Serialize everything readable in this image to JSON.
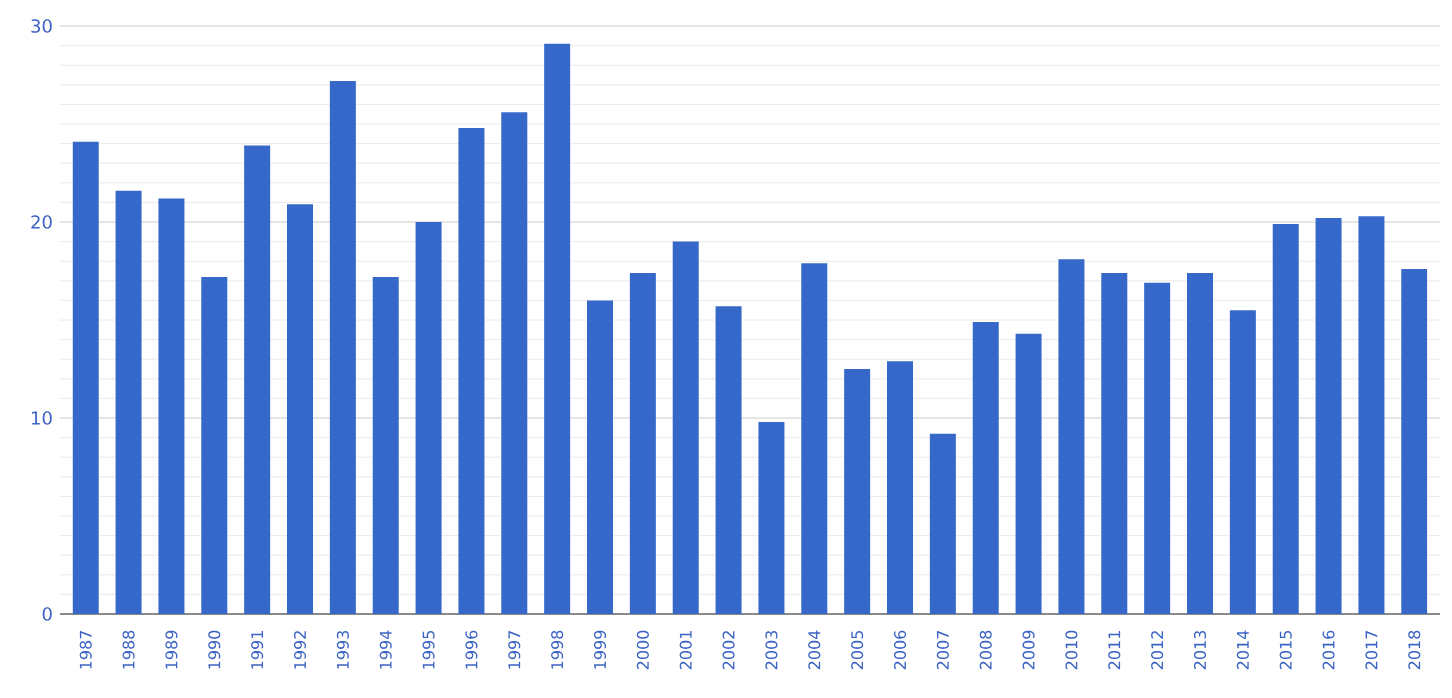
{
  "chart_data": {
    "type": "bar",
    "categories": [
      "1987",
      "1988",
      "1989",
      "1990",
      "1991",
      "1992",
      "1993",
      "1994",
      "1995",
      "1996",
      "1997",
      "1998",
      "1999",
      "2000",
      "2001",
      "2002",
      "2003",
      "2004",
      "2005",
      "2006",
      "2007",
      "2008",
      "2009",
      "2010",
      "2011",
      "2012",
      "2013",
      "2014",
      "2015",
      "2016",
      "2017",
      "2018"
    ],
    "values": [
      24.1,
      21.6,
      21.2,
      17.2,
      23.9,
      20.9,
      27.2,
      17.2,
      20.0,
      24.8,
      25.6,
      29.1,
      16.0,
      17.4,
      19.0,
      15.7,
      9.8,
      17.9,
      12.5,
      12.9,
      9.2,
      14.9,
      14.3,
      18.1,
      17.4,
      16.9,
      17.4,
      15.5,
      19.9,
      20.2,
      20.3,
      17.6
    ],
    "color": "#3668c9",
    "ylim": [
      0,
      30
    ],
    "yticks": [
      0,
      10,
      20,
      30
    ],
    "grid": "y"
  }
}
